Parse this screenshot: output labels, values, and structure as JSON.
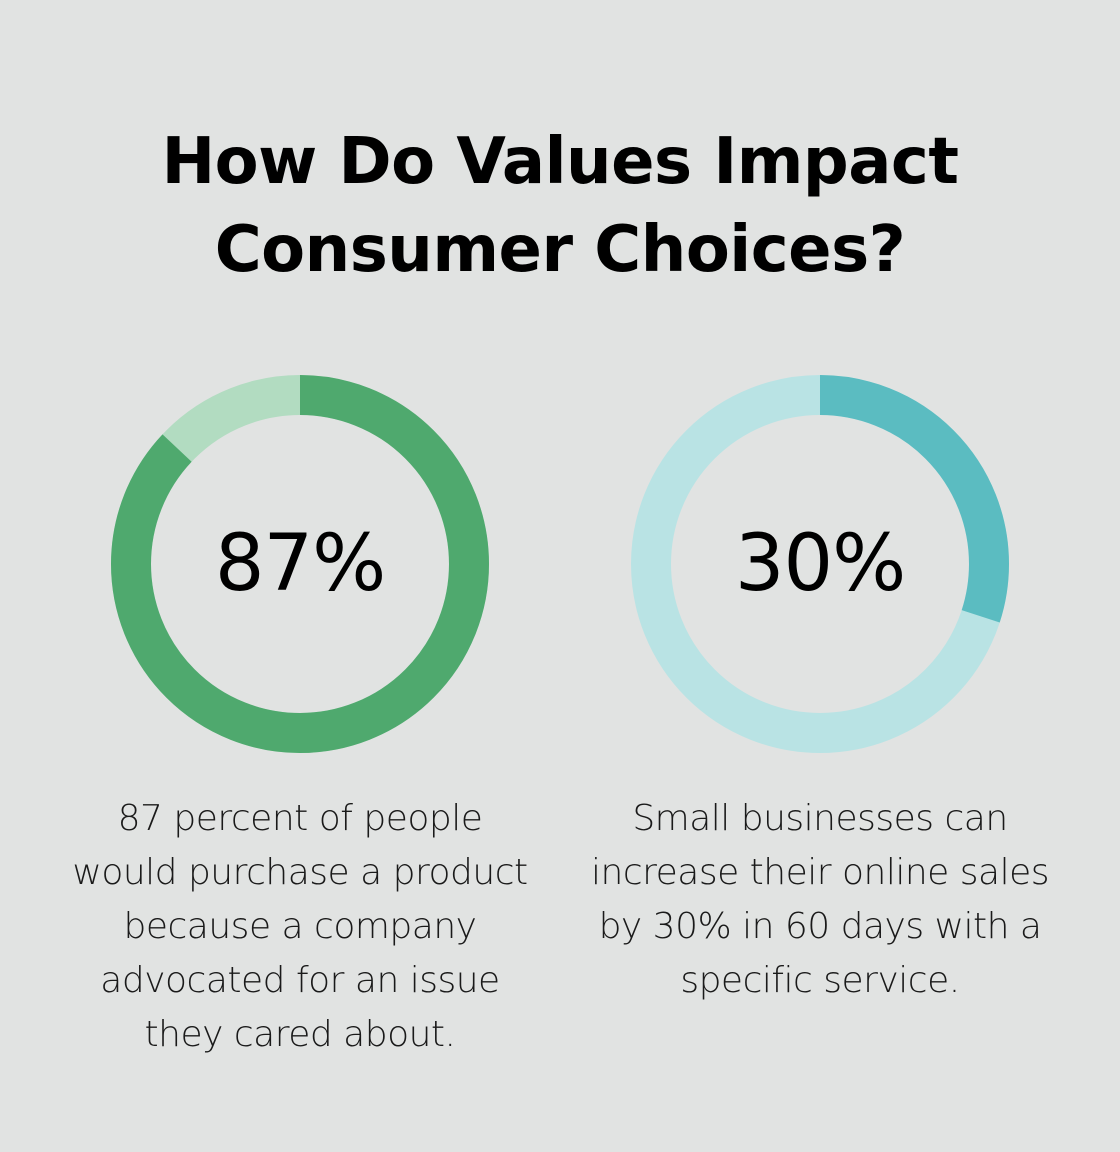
{
  "title": {
    "line1": "How Do Values Impact",
    "line2": "Consumer Choices?"
  },
  "stats": [
    {
      "value_label": "87%",
      "percent": 87,
      "color_fill": "#4fa96e",
      "color_track": "#b2dcc1",
      "description_lines": [
        "87 percent of people",
        "would purchase a product",
        "because a company",
        "advocated for an issue",
        "they cared about."
      ]
    },
    {
      "value_label": "30%",
      "percent": 30,
      "color_fill": "#5bbcc1",
      "color_track": "#b9e3e4",
      "description_lines": [
        "Small businesses can",
        "increase their online sales",
        "by 30% in 60 days with a",
        "specific service."
      ]
    }
  ]
}
